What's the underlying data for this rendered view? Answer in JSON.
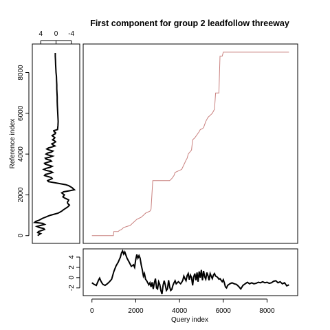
{
  "chart_data": {
    "type": "line",
    "title": "First component for group 2 leadfollow threeway",
    "colors": {
      "warp_path": "#c9807e",
      "series": "#000000",
      "frame": "#000000",
      "background": "#ffffff"
    },
    "grid": false,
    "main": {
      "xlim": [
        -400,
        9400
      ],
      "ylim": [
        -380,
        9400
      ],
      "warping_path": {
        "x": [
          0,
          980,
          1000,
          1200,
          1250,
          1350,
          1450,
          1600,
          1750,
          1850,
          1950,
          2050,
          2150,
          2250,
          2350,
          2450,
          2650,
          2700,
          2780,
          3000,
          3300,
          3550,
          3650,
          3750,
          3800,
          3900,
          4000,
          4100,
          4300,
          4350,
          4400,
          4550,
          4600,
          4700,
          4900,
          4950,
          5050,
          5100,
          5200,
          5300,
          5400,
          5500,
          5600,
          5650,
          5700,
          5800,
          5850,
          5950,
          6000,
          6100,
          9000
        ],
        "y": [
          0,
          0,
          200,
          200,
          250,
          300,
          400,
          450,
          500,
          600,
          700,
          800,
          850,
          900,
          1000,
          1100,
          1200,
          1300,
          2700,
          2700,
          2700,
          2700,
          2800,
          2950,
          3100,
          3150,
          3200,
          3250,
          3700,
          3800,
          4000,
          4200,
          4700,
          4800,
          5100,
          5200,
          5250,
          5300,
          5600,
          5800,
          5900,
          6000,
          6200,
          7000,
          7000,
          7000,
          8800,
          8800,
          9000,
          9000,
          9000
        ]
      }
    },
    "reference": {
      "ylabel": "Reference index",
      "y_ticks": [
        0,
        2000,
        4000,
        6000,
        8000
      ],
      "top_ticks": [
        4,
        0,
        -4
      ],
      "xlim": [
        6.2,
        -6.2
      ],
      "y": [
        8960,
        8900,
        8800,
        8600,
        8400,
        8200,
        8000,
        7800,
        7600,
        7400,
        7200,
        7000,
        6800,
        6600,
        6400,
        6200,
        6000,
        5800,
        5600,
        5400,
        5200,
        5150,
        5100,
        5050,
        5000,
        4950,
        4900,
        4850,
        4800,
        4750,
        4700,
        4650,
        4600,
        4550,
        4500,
        4450,
        4400,
        4350,
        4300,
        4250,
        4200,
        4150,
        4100,
        4050,
        4000,
        3950,
        3900,
        3850,
        3800,
        3750,
        3700,
        3650,
        3600,
        3550,
        3500,
        3450,
        3400,
        3350,
        3300,
        3250,
        3200,
        3150,
        3100,
        3050,
        3000,
        2950,
        2900,
        2850,
        2800,
        2750,
        2700,
        2650,
        2600,
        2550,
        2500,
        2450,
        2400,
        2350,
        2300,
        2250,
        2200,
        2150,
        2100,
        2050,
        2000,
        1950,
        1900,
        1850,
        1800,
        1750,
        1700,
        1650,
        1600,
        1550,
        1500,
        1450,
        1400,
        1350,
        1300,
        1250,
        1200,
        1150,
        1100,
        1050,
        1000,
        950,
        900,
        850,
        800,
        750,
        700,
        650,
        600,
        550,
        500,
        450,
        400,
        350,
        300,
        250,
        200,
        150,
        100,
        50,
        0
      ],
      "values": [
        0.2,
        0.2,
        0.2,
        0.15,
        0.1,
        0.05,
        0.0,
        -0.1,
        -0.15,
        -0.2,
        -0.2,
        -0.25,
        -0.3,
        -0.3,
        -0.35,
        -0.4,
        -0.45,
        -0.5,
        -0.55,
        -0.5,
        -0.4,
        0.6,
        0.5,
        0.1,
        0.2,
        0.7,
        1.0,
        0.6,
        0.3,
        0.6,
        0.9,
        0.4,
        0.1,
        0.5,
        1.1,
        0.8,
        0.3,
        1.0,
        2.0,
        2.4,
        1.8,
        0.8,
        1.2,
        2.2,
        2.6,
        2.0,
        0.9,
        1.6,
        2.8,
        2.6,
        1.5,
        1.2,
        2.2,
        3.0,
        2.8,
        1.8,
        1.0,
        1.6,
        2.6,
        3.2,
        2.6,
        1.4,
        0.9,
        1.7,
        2.8,
        3.0,
        2.2,
        1.2,
        1.0,
        1.6,
        2.2,
        2.0,
        0.5,
        -1.0,
        -2.5,
        -3.3,
        -3.8,
        -4.2,
        -4.5,
        -4.8,
        -3.5,
        -2.0,
        -1.5,
        -1.8,
        -2.2,
        -2.0,
        -1.8,
        -2.2,
        -2.8,
        -3.3,
        -3.2,
        -3.0,
        -3.0,
        -3.2,
        -3.5,
        -3.3,
        -3.0,
        -2.6,
        -2.2,
        -1.8,
        -1.5,
        -1.0,
        -0.5,
        0.5,
        1.5,
        2.2,
        2.8,
        3.5,
        4.0,
        4.5,
        5.3,
        5.6,
        3.5,
        3.0,
        4.0,
        5.0,
        4.4,
        3.2,
        3.0,
        3.8,
        4.6,
        4.8,
        4.0,
        4.4,
        4.8
      ]
    },
    "query": {
      "xlabel": "Query index",
      "x_ticks": [
        0,
        2000,
        4000,
        6000,
        8000
      ],
      "y_ticks": [
        4,
        2,
        0,
        -2
      ],
      "ylim": [
        -3.5,
        5.6
      ],
      "x": [
        0,
        100,
        200,
        300,
        350,
        400,
        450,
        500,
        600,
        700,
        800,
        900,
        1000,
        1100,
        1200,
        1300,
        1350,
        1400,
        1450,
        1500,
        1550,
        1600,
        1700,
        1800,
        1900,
        1950,
        2000,
        2050,
        2100,
        2150,
        2200,
        2250,
        2300,
        2350,
        2400,
        2450,
        2500,
        2550,
        2600,
        2650,
        2700,
        2750,
        2800,
        2850,
        2900,
        2950,
        3000,
        3050,
        3100,
        3150,
        3200,
        3250,
        3300,
        3350,
        3400,
        3450,
        3500,
        3550,
        3600,
        3650,
        3700,
        3750,
        3800,
        3850,
        3900,
        3950,
        4000,
        4050,
        4100,
        4150,
        4200,
        4250,
        4300,
        4350,
        4400,
        4450,
        4500,
        4550,
        4600,
        4650,
        4700,
        4750,
        4800,
        4850,
        4900,
        4950,
        5000,
        5050,
        5100,
        5150,
        5200,
        5250,
        5300,
        5350,
        5400,
        5450,
        5500,
        5550,
        5600,
        5650,
        5700,
        5750,
        5800,
        5850,
        5900,
        5950,
        6000,
        6050,
        6100,
        6150,
        6200,
        6300,
        6400,
        6500,
        6600,
        6700,
        6800,
        6900,
        7000,
        7100,
        7200,
        7300,
        7400,
        7500,
        7600,
        7700,
        7800,
        7900,
        8000,
        8100,
        8200,
        8300,
        8400,
        8500,
        8600,
        8700,
        8800,
        8900,
        9000
      ],
      "values": [
        -1.0,
        -1.3,
        -1.5,
        -0.5,
        -0.1,
        -0.6,
        -1.0,
        -1.3,
        -1.5,
        -1.2,
        -0.8,
        -0.3,
        1.2,
        2.3,
        3.0,
        4.0,
        4.8,
        5.2,
        4.6,
        5.0,
        4.4,
        3.8,
        3.0,
        2.2,
        2.5,
        2.0,
        3.5,
        4.5,
        3.8,
        4.3,
        3.8,
        2.5,
        1.5,
        0.3,
        0.8,
        -0.3,
        -0.6,
        -1.0,
        -1.4,
        -1.0,
        -1.8,
        -0.9,
        -2.2,
        -1.0,
        -0.2,
        -2.0,
        -2.2,
        -0.8,
        -1.3,
        -2.5,
        -3.2,
        -1.5,
        -0.6,
        -1.4,
        -2.5,
        -2.2,
        -0.5,
        -1.8,
        -2.5,
        -2.3,
        -1.5,
        -1.0,
        -0.6,
        -1.2,
        -1.0,
        -0.8,
        -1.0,
        -1.2,
        -0.9,
        -0.5,
        0.3,
        -0.2,
        -0.6,
        0.4,
        0.8,
        -0.4,
        0.5,
        0.0,
        -1.5,
        0.2,
        0.8,
        -0.5,
        1.0,
        -0.8,
        1.2,
        0.0,
        1.5,
        -0.5,
        1.3,
        0.2,
        -0.3,
        1.0,
        0.4,
        -0.5,
        0.8,
        0.3,
        -0.2,
        0.5,
        0.8,
        0.3,
        0.2,
        0.0,
        -0.3,
        -0.2,
        -0.5,
        -0.8,
        -0.4,
        -1.0,
        -1.8,
        -2.0,
        -1.5,
        -1.2,
        -1.0,
        -1.2,
        -1.3,
        -1.7,
        -2.2,
        -1.5,
        -1.2,
        -0.9,
        -1.2,
        -1.0,
        -1.2,
        -1.1,
        -0.9,
        -1.0,
        -0.8,
        -1.0,
        -0.9,
        -1.1,
        -1.0,
        -0.7,
        -0.6,
        -1.0,
        -0.8,
        -1.2,
        -1.0,
        -1.6,
        -1.4
      ]
    }
  }
}
